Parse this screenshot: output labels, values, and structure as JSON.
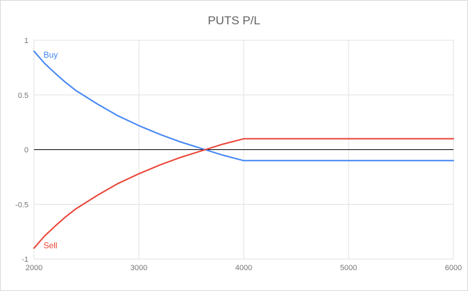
{
  "colors": {
    "background": "#ffffff",
    "frame_border": "#d9d9d9",
    "grid": "#e0e0e0",
    "zero_line": "#000000",
    "tick_label": "#757575",
    "title": "#616161",
    "buy_series": "#4285f4",
    "sell_series": "#ea4335"
  },
  "chart_data": {
    "type": "line",
    "title": "PUTS P/L",
    "xlabel": "",
    "ylabel": "",
    "xlim": [
      2000,
      6000
    ],
    "ylim": [
      -1,
      1
    ],
    "x_ticks": [
      2000,
      3000,
      4000,
      5000,
      6000
    ],
    "y_ticks": [
      1,
      0.5,
      0,
      -0.5,
      -1
    ],
    "grid": true,
    "zero_line": true,
    "legend_position": "inline-labels",
    "series": [
      {
        "name": "Buy",
        "color": "#4285f4",
        "label": {
          "x": 2090,
          "y": 0.84
        },
        "points": [
          [
            2000,
            0.9
          ],
          [
            2100,
            0.79
          ],
          [
            2200,
            0.7
          ],
          [
            2300,
            0.615
          ],
          [
            2400,
            0.54
          ],
          [
            2600,
            0.42
          ],
          [
            2800,
            0.31
          ],
          [
            3000,
            0.22
          ],
          [
            3200,
            0.14
          ],
          [
            3400,
            0.07
          ],
          [
            3600,
            0.01
          ],
          [
            3800,
            -0.05
          ],
          [
            4000,
            -0.1
          ],
          [
            4500,
            -0.1
          ],
          [
            5000,
            -0.1
          ],
          [
            5500,
            -0.1
          ],
          [
            6000,
            -0.1
          ]
        ]
      },
      {
        "name": "Sell",
        "color": "#ea4335",
        "label": {
          "x": 2090,
          "y": -0.9
        },
        "points": [
          [
            2000,
            -0.9
          ],
          [
            2100,
            -0.79
          ],
          [
            2200,
            -0.7
          ],
          [
            2300,
            -0.615
          ],
          [
            2400,
            -0.54
          ],
          [
            2600,
            -0.42
          ],
          [
            2800,
            -0.31
          ],
          [
            3000,
            -0.22
          ],
          [
            3200,
            -0.14
          ],
          [
            3400,
            -0.07
          ],
          [
            3600,
            -0.01
          ],
          [
            3800,
            0.05
          ],
          [
            4000,
            0.1
          ],
          [
            4500,
            0.1
          ],
          [
            5000,
            0.1
          ],
          [
            5500,
            0.1
          ],
          [
            6000,
            0.1
          ]
        ]
      }
    ]
  }
}
